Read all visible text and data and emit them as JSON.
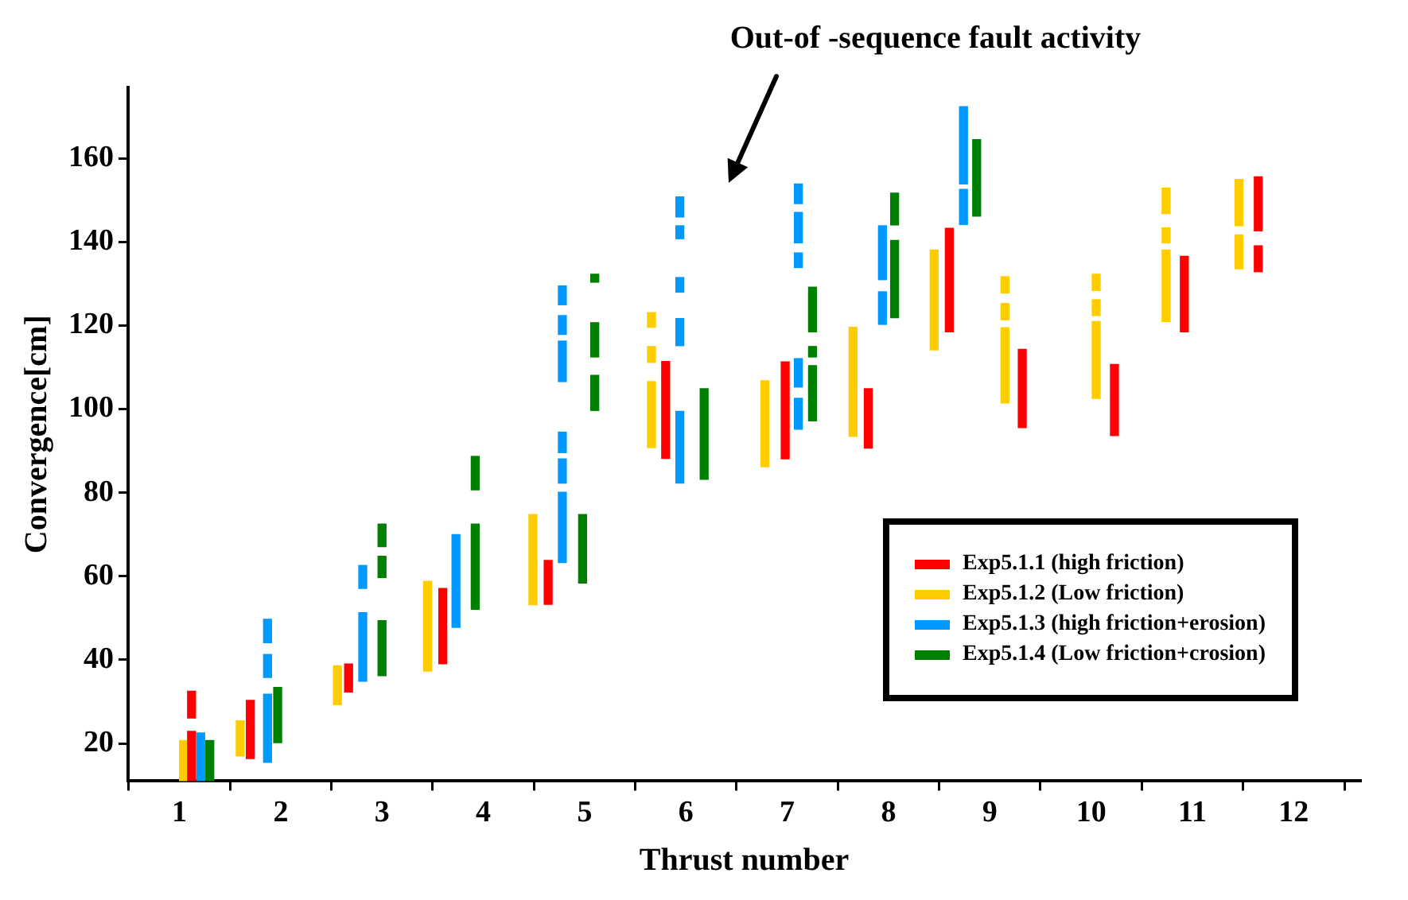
{
  "chart_data": {
    "type": "bar",
    "xlabel": "Thrust number",
    "ylabel": "Convergence[cm]",
    "xlim": [
      1,
      12.15
    ],
    "xticks": [
      1,
      2,
      3,
      4,
      5,
      6,
      7,
      8,
      9,
      10,
      11,
      12
    ],
    "ylim": [
      11,
      177
    ],
    "yticks": [
      20,
      40,
      60,
      80,
      100,
      120,
      140,
      160
    ],
    "grid": false,
    "legend": "bottom right",
    "annotations": [
      "Out-of -sequence fault activity"
    ],
    "series": [
      {
        "name": "Exp5.1.1 (high friction)",
        "color": "#ff0000",
        "x": [
          1.12,
          1.7,
          2.67,
          3.6,
          4.64,
          5.8,
          6.98,
          7.8,
          8.6,
          9.32,
          10.23,
          10.92,
          11.65
        ],
        "base": [
          11,
          16.4,
          32.3,
          39.1,
          53.3,
          88.2,
          88.1,
          90.7,
          118.5,
          95.6,
          93.7,
          118.5,
          132.9
        ],
        "values": [
          11.9,
          13.9,
          6.7,
          18,
          10.5,
          23.2,
          23.2,
          14.2,
          24.8,
          18.7,
          17,
          18.1,
          6.2
        ]
      },
      {
        "name": "Exp5.1.2 (Low friction)",
        "color": "#ffcc00",
        "x": [
          1.04,
          1.6,
          2.56,
          3.45,
          4.49,
          5.66,
          6.78,
          7.65,
          8.45,
          9.15,
          10.05,
          10.74,
          11.46
        ],
        "base": [
          11,
          17,
          29.3,
          37.3,
          53.2,
          90.8,
          86.2,
          93.5,
          114.2,
          101.5,
          102.6,
          121,
          133.6
        ],
        "values": [
          9.7,
          8.4,
          9.3,
          21.5,
          21.6,
          15.8,
          20.6,
          26.1,
          23.9,
          18,
          18.4,
          17.1,
          8.1
        ]
      },
      {
        "name": "Exp5.1.3 (high friction+erosion)",
        "color": "#0099ff",
        "x": [
          1.21,
          1.87,
          2.81,
          3.73,
          4.78,
          5.94,
          7.11,
          7.94,
          8.74
        ],
        "base": [
          11,
          15.5,
          34.9,
          47.8,
          63.3,
          82.3,
          95.2,
          120.3,
          144.2
        ],
        "values": [
          11.5,
          16.3,
          16.4,
          22.2,
          16.8,
          17.2,
          7.4,
          7.8,
          8.4
        ]
      },
      {
        "name": "Exp5.1.4 (Low friction+crosion)",
        "color": "#008000",
        "x": [
          1.3,
          1.97,
          3,
          3.92,
          4.98,
          5.1,
          6.18,
          7.25,
          8.06,
          8.87
        ],
        "base": [
          11,
          20.2,
          36.2,
          52.1,
          58.4,
          99.7,
          83.2,
          97.2,
          121.9,
          146.2
        ],
        "values": [
          9.7,
          13.2,
          13.2,
          20.4,
          16.4,
          8.4,
          21.7,
          13.2,
          18.5,
          18.3
        ]
      },
      {
        "color": "#ff0000",
        "x": [
          1.12,
          11.65
        ],
        "base": [
          26.1,
          142.7
        ],
        "values": [
          6.4,
          12.9
        ]
      },
      {
        "color": "#ffcc00",
        "x": [
          5.66,
          9.15,
          10.05,
          10.74,
          11.46
        ],
        "base": [
          111.2,
          121.4,
          122.4,
          139.8,
          143.9
        ],
        "values": [
          3.8,
          3.9,
          3.8,
          3.6,
          11.1
        ]
      },
      {
        "color": "#ffcc00",
        "x": [
          5.66,
          9.15,
          10.05,
          10.74
        ],
        "base": [
          119.6,
          127.8,
          128.4,
          146.8
        ],
        "values": [
          3.5,
          3.9,
          3.9,
          6.1
        ]
      },
      {
        "color": "#0099ff",
        "x": [
          1.87,
          2.81,
          4.78,
          5.94,
          7.11,
          7.94,
          8.74
        ],
        "base": [
          35.8,
          57.1,
          82.3,
          115.2,
          105.3,
          131,
          153.9
        ],
        "values": [
          5.5,
          5.5,
          5.8,
          6.5,
          6.8,
          12.9,
          18.5
        ]
      },
      {
        "color": "#0099ff",
        "x": [
          1.87,
          4.78,
          5.94,
          7.11
        ],
        "base": [
          44.1,
          89.6,
          128,
          133.9
        ],
        "values": [
          5.6,
          4.9,
          3.5,
          3.5
        ]
      },
      {
        "color": "#0099ff",
        "x": [
          4.78,
          5.94,
          7.11
        ],
        "base": [
          106.6,
          140.8,
          139.8
        ],
        "values": [
          9.7,
          3.1,
          7.3
        ]
      },
      {
        "color": "#0099ff",
        "x": [
          4.78,
          5.94,
          7.11
        ],
        "base": [
          117.9,
          146,
          149.2
        ],
        "values": [
          4.5,
          4.8,
          4.7
        ]
      },
      {
        "color": "#0099ff",
        "x": [
          4.78
        ],
        "base": [
          125
        ],
        "values": [
          4.5
        ]
      },
      {
        "color": "#008000",
        "x": [
          3,
          3.92,
          5.1,
          7.25,
          8.06
        ],
        "base": [
          59.7,
          80.7,
          112.5,
          112.5,
          144.1
        ],
        "values": [
          5.1,
          8,
          8.2,
          2.5,
          7.6
        ]
      },
      {
        "color": "#008000",
        "x": [
          3,
          5.1,
          7.25
        ],
        "base": [
          67.1,
          130.4,
          118.5
        ],
        "values": [
          5.4,
          1.9,
          10.7
        ]
      }
    ]
  }
}
